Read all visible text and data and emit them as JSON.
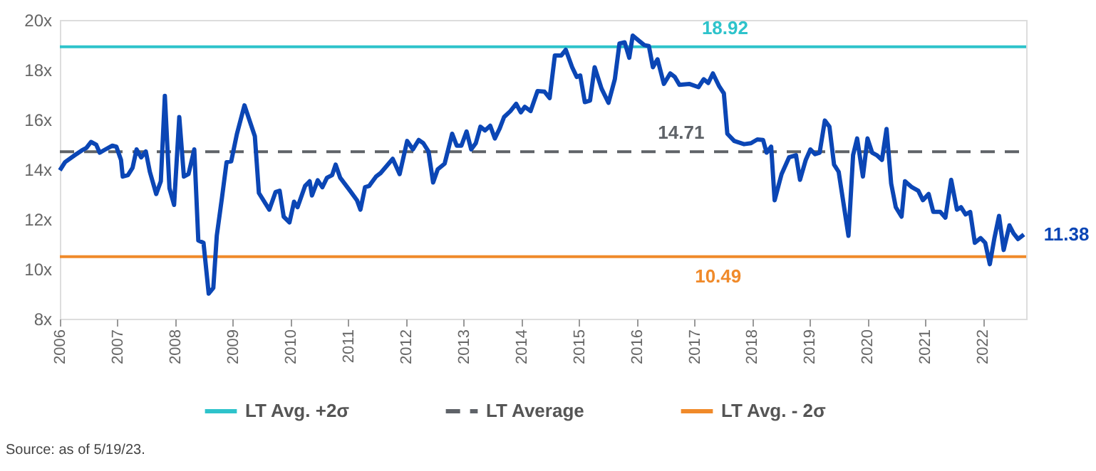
{
  "chart_data": {
    "type": "line",
    "xlim": [
      2006,
      2022.75
    ],
    "xticks": [
      2006,
      2007,
      2008,
      2009,
      2010,
      2011,
      2012,
      2013,
      2014,
      2015,
      2016,
      2017,
      2018,
      2019,
      2020,
      2021,
      2022
    ],
    "ylim": [
      8,
      20
    ],
    "yticks": [
      {
        "value": 8,
        "label": "8x"
      },
      {
        "value": 10,
        "label": "10x"
      },
      {
        "value": 12,
        "label": "12x"
      },
      {
        "value": 14,
        "label": "14x"
      },
      {
        "value": 16,
        "label": "16x"
      },
      {
        "value": 18,
        "label": "18x"
      },
      {
        "value": 20,
        "label": "20x"
      }
    ],
    "grid": false,
    "legend": "bottom",
    "series": [
      {
        "color": "#0b46b5",
        "x": [
          2006.0,
          2006.09,
          2006.26,
          2006.38,
          2006.46,
          2006.54,
          2006.63,
          2006.69,
          2006.79,
          2006.91,
          2006.98,
          2007.06,
          2007.09,
          2007.18,
          2007.26,
          2007.33,
          2007.41,
          2007.49,
          2007.56,
          2007.67,
          2007.75,
          2007.82,
          2007.9,
          2007.98,
          2008.07,
          2008.15,
          2008.23,
          2008.33,
          2008.4,
          2008.49,
          2008.58,
          2008.66,
          2008.72,
          2008.81,
          2008.89,
          2008.97,
          2009.07,
          2009.2,
          2009.38,
          2009.45,
          2009.63,
          2009.74,
          2009.81,
          2009.88,
          2009.98,
          2010.06,
          2010.12,
          2010.25,
          2010.33,
          2010.37,
          2010.47,
          2010.55,
          2010.63,
          2010.72,
          2010.78,
          2010.86,
          2011.03,
          2011.15,
          2011.21,
          2011.29,
          2011.36,
          2011.48,
          2011.56,
          2011.77,
          2011.89,
          2012.02,
          2012.12,
          2012.22,
          2012.3,
          2012.39,
          2012.47,
          2012.55,
          2012.67,
          2012.8,
          2012.88,
          2012.96,
          2013.05,
          2013.13,
          2013.21,
          2013.29,
          2013.37,
          2013.46,
          2013.54,
          2013.62,
          2013.7,
          2013.81,
          2013.91,
          2013.99,
          2014.06,
          2014.16,
          2014.28,
          2014.4,
          2014.49,
          2014.58,
          2014.69,
          2014.77,
          2014.88,
          2014.96,
          2015.02,
          2015.1,
          2015.19,
          2015.27,
          2015.39,
          2015.51,
          2015.62,
          2015.7,
          2015.79,
          2015.87,
          2015.93,
          2016.05,
          2016.13,
          2016.21,
          2016.28,
          2016.36,
          2016.47,
          2016.58,
          2016.66,
          2016.74,
          2016.91,
          2017.07,
          2017.16,
          2017.24,
          2017.32,
          2017.43,
          2017.51,
          2017.57,
          2017.69,
          2017.86,
          2017.98,
          2018.09,
          2018.19,
          2018.25,
          2018.33,
          2018.39,
          2018.51,
          2018.64,
          2018.76,
          2018.83,
          2018.93,
          2019.01,
          2019.09,
          2019.17,
          2019.26,
          2019.34,
          2019.42,
          2019.5,
          2019.67,
          2019.75,
          2019.82,
          2019.92,
          2020.0,
          2020.08,
          2020.16,
          2020.25,
          2020.33,
          2020.41,
          2020.49,
          2020.59,
          2020.65,
          2020.77,
          2020.88,
          2020.96,
          2021.06,
          2021.14,
          2021.26,
          2021.35,
          2021.45,
          2021.55,
          2021.62,
          2021.7,
          2021.78,
          2021.86,
          2021.96,
          2022.04,
          2022.12,
          2022.2,
          2022.28,
          2022.36,
          2022.46,
          2022.53,
          2022.61,
          2022.71
        ],
        "values": [
          13.96,
          14.29,
          14.57,
          14.76,
          14.86,
          15.1,
          14.99,
          14.67,
          14.8,
          14.95,
          14.91,
          14.38,
          13.71,
          13.77,
          14.06,
          14.8,
          14.48,
          14.72,
          13.9,
          13.01,
          13.52,
          16.95,
          13.24,
          12.57,
          16.1,
          13.71,
          13.81,
          14.8,
          11.14,
          11.05,
          9.01,
          9.24,
          11.33,
          12.86,
          14.29,
          14.32,
          15.43,
          16.57,
          15.33,
          13.05,
          12.38,
          13.09,
          13.14,
          12.1,
          11.87,
          12.7,
          12.48,
          13.33,
          13.52,
          12.95,
          13.56,
          13.28,
          13.66,
          13.77,
          14.19,
          13.66,
          13.14,
          12.76,
          12.38,
          13.28,
          13.33,
          13.71,
          13.85,
          14.42,
          13.81,
          15.14,
          14.8,
          15.18,
          15.05,
          14.72,
          13.47,
          14.0,
          14.23,
          15.43,
          14.95,
          14.95,
          15.52,
          14.8,
          15.05,
          15.71,
          15.56,
          15.75,
          15.24,
          15.62,
          16.1,
          16.34,
          16.63,
          16.29,
          16.51,
          16.34,
          17.14,
          17.12,
          16.86,
          18.57,
          18.57,
          18.8,
          18.1,
          17.71,
          17.77,
          16.7,
          16.76,
          18.1,
          17.24,
          16.67,
          17.62,
          19.05,
          19.1,
          18.48,
          19.37,
          19.14,
          18.99,
          18.95,
          18.1,
          18.42,
          17.43,
          17.85,
          17.71,
          17.39,
          17.43,
          17.3,
          17.62,
          17.47,
          17.85,
          17.33,
          17.05,
          15.43,
          15.14,
          15.01,
          15.05,
          15.2,
          15.18,
          14.67,
          14.91,
          12.76,
          13.81,
          14.48,
          14.57,
          13.58,
          14.38,
          14.8,
          14.61,
          14.67,
          15.96,
          15.71,
          14.19,
          13.9,
          11.33,
          14.57,
          15.24,
          13.71,
          15.24,
          14.67,
          14.57,
          14.38,
          15.62,
          13.43,
          12.48,
          12.1,
          13.52,
          13.28,
          13.14,
          12.76,
          13.01,
          12.29,
          12.29,
          12.06,
          13.58,
          12.38,
          12.48,
          12.19,
          12.29,
          11.05,
          11.24,
          11.05,
          10.19,
          11.24,
          12.13,
          10.76,
          11.75,
          11.43,
          11.2,
          11.38
        ]
      },
      {
        "name": "LT Avg. +2σ",
        "color": "#2ec3cb",
        "x": [
          2006,
          2022.75
        ],
        "values": [
          18.92,
          18.92
        ]
      },
      {
        "name": "LT Average",
        "color": "#5f6368",
        "line_style": "dashed",
        "x": [
          2006,
          2022.75
        ],
        "values": [
          14.71,
          14.71
        ]
      },
      {
        "name": "LT Avg. - 2σ",
        "color": "#f08a2a",
        "x": [
          2006,
          2022.75
        ],
        "values": [
          10.49,
          10.49
        ]
      }
    ],
    "annotations": [
      {
        "text": "18.92",
        "x": 2017.53,
        "y": 18.92
      },
      {
        "text": "14.71",
        "x": 2016.77,
        "y": 14.71
      },
      {
        "text": "10.49",
        "x": 2017.41,
        "y": 10.49
      },
      {
        "text": "11.38",
        "x": 2022.71,
        "y": 11.38
      },
      "Source: as of 5/19/23."
    ]
  }
}
